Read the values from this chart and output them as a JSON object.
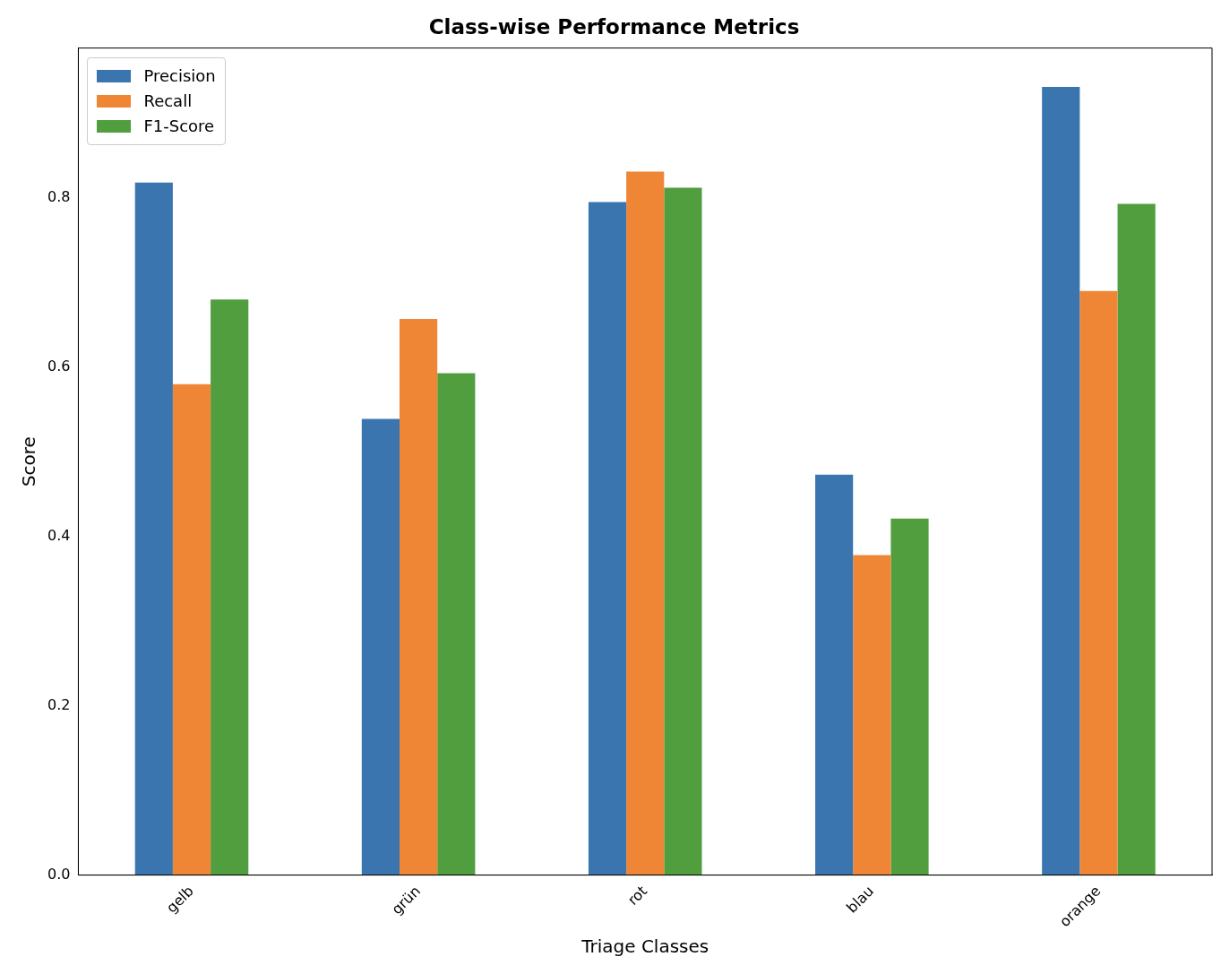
{
  "chart_data": {
    "type": "bar",
    "title": "Class-wise Performance Metrics",
    "xlabel": "Triage Classes",
    "ylabel": "Score",
    "categories": [
      "gelb",
      "grün",
      "rot",
      "blau",
      "orange"
    ],
    "series": [
      {
        "name": "Precision",
        "color": "#3a75af",
        "values": [
          0.818,
          0.539,
          0.795,
          0.473,
          0.931
        ]
      },
      {
        "name": "Recall",
        "color": "#ef8636",
        "values": [
          0.58,
          0.657,
          0.831,
          0.378,
          0.69
        ]
      },
      {
        "name": "F1-Score",
        "color": "#519e3e",
        "values": [
          0.68,
          0.593,
          0.812,
          0.421,
          0.793
        ]
      }
    ],
    "ylim": [
      0,
      0.977
    ],
    "yticks": [
      {
        "value": 0,
        "label": "0.0"
      },
      {
        "value": 0.2,
        "label": "0.2"
      },
      {
        "value": 0.4,
        "label": "0.4"
      },
      {
        "value": 0.6,
        "label": "0.6"
      },
      {
        "value": 0.8,
        "label": "0.8"
      }
    ],
    "grid": false,
    "legend": "top left"
  }
}
